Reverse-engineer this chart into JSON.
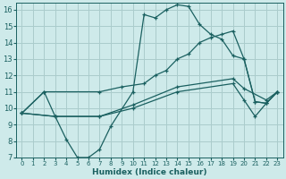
{
  "xlabel": "Humidex (Indice chaleur)",
  "background_color": "#ceeaea",
  "grid_color": "#aacccc",
  "line_color": "#1a6060",
  "xlim": [
    -0.5,
    23.5
  ],
  "ylim": [
    7,
    16.4
  ],
  "xticks": [
    0,
    1,
    2,
    3,
    4,
    5,
    6,
    7,
    8,
    9,
    10,
    11,
    12,
    13,
    14,
    15,
    16,
    17,
    18,
    19,
    20,
    21,
    22,
    23
  ],
  "yticks": [
    7,
    8,
    9,
    10,
    11,
    12,
    13,
    14,
    15,
    16
  ],
  "line1_x": [
    0,
    2,
    3,
    4,
    5,
    6,
    7,
    8,
    10,
    11,
    12,
    13,
    14,
    15,
    16,
    17,
    18,
    19,
    20,
    21,
    22,
    23
  ],
  "line1_y": [
    9.7,
    11.0,
    9.5,
    8.1,
    7.0,
    7.0,
    7.5,
    8.9,
    11.0,
    15.7,
    15.5,
    16.0,
    16.3,
    16.2,
    15.1,
    14.5,
    14.2,
    13.2,
    13.0,
    10.4,
    10.3,
    11.0
  ],
  "line2_x": [
    0,
    2,
    7,
    9,
    11,
    12,
    13,
    14,
    15,
    16,
    17,
    18,
    19,
    20,
    21,
    22,
    23
  ],
  "line2_y": [
    9.7,
    11.0,
    11.0,
    11.3,
    11.5,
    12.0,
    12.3,
    13.0,
    13.3,
    14.0,
    14.3,
    14.5,
    14.7,
    13.0,
    10.4,
    10.3,
    11.0
  ],
  "line3_x": [
    0,
    3,
    7,
    10,
    14,
    19,
    20,
    21,
    22,
    23
  ],
  "line3_y": [
    9.7,
    9.5,
    9.5,
    10.0,
    11.0,
    11.5,
    10.5,
    9.5,
    10.3,
    11.0
  ],
  "line4_x": [
    0,
    3,
    7,
    10,
    14,
    19,
    20,
    22,
    23
  ],
  "line4_y": [
    9.7,
    9.5,
    9.5,
    10.2,
    11.3,
    11.8,
    11.2,
    10.5,
    11.0
  ]
}
